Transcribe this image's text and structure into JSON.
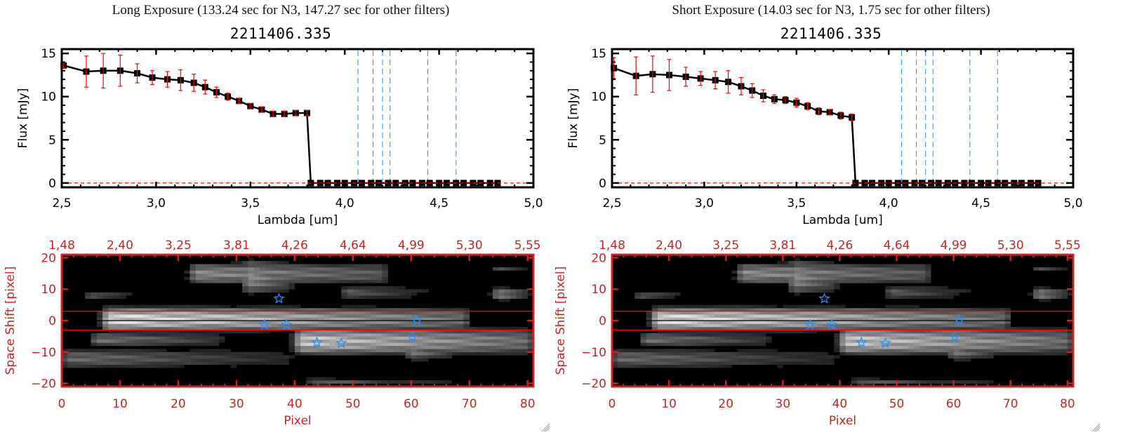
{
  "colors": {
    "spectrum_line": "#000000",
    "error_bar": "#ff0000",
    "filter_line": "#1e90ff",
    "zero_line": "#ff0000",
    "image_axis": "#cc2222",
    "aperture_line": "#ff0000",
    "star_marker": "#1e90ff"
  },
  "panels": [
    {
      "id": "long",
      "exposure_title": "Long Exposure (133.24 sec for N3, 147.27 sec for other filters)",
      "object_id": "2211406.335"
    },
    {
      "id": "short",
      "exposure_title": "Short Exposure (14.03 sec for N3, 1.75 sec for other filters)",
      "object_id": "2211406.335"
    }
  ],
  "chart_data": [
    {
      "type": "line",
      "panel": "long",
      "title": "2211406.335",
      "xlabel": "Lambda [um]",
      "ylabel": "Flux [mJy]",
      "xlim": [
        2.5,
        5.0
      ],
      "ylim": [
        -0.5,
        15.5
      ],
      "xticks": [
        "2.5",
        "3.0",
        "3.5",
        "4.0",
        "4.5",
        "5.0"
      ],
      "yticks": [
        "0",
        "5",
        "10",
        "15"
      ],
      "x": [
        2.51,
        2.63,
        2.72,
        2.81,
        2.9,
        2.98,
        3.06,
        3.13,
        3.2,
        3.26,
        3.32,
        3.38,
        3.44,
        3.5,
        3.56,
        3.62,
        3.68,
        3.74,
        3.8,
        3.82,
        3.87,
        3.91,
        3.96,
        4.0,
        4.05,
        4.09,
        4.14,
        4.18,
        4.23,
        4.27,
        4.32,
        4.36,
        4.41,
        4.45,
        4.5,
        4.54,
        4.59,
        4.63,
        4.68,
        4.72,
        4.77,
        4.81
      ],
      "y": [
        13.6,
        12.9,
        13.0,
        13.0,
        12.7,
        12.2,
        12.0,
        11.9,
        11.6,
        11.1,
        10.5,
        10.0,
        9.5,
        8.9,
        8.5,
        8.0,
        8.0,
        8.1,
        8.1,
        0,
        0,
        0,
        0,
        0,
        0,
        0,
        0,
        0,
        0,
        0,
        0,
        0,
        0,
        0,
        0,
        0,
        0,
        0,
        0,
        0,
        0,
        0
      ],
      "yerr": [
        0.3,
        1.8,
        2.0,
        1.8,
        1.1,
        0.8,
        0.9,
        1.2,
        1.0,
        0.8,
        0.6,
        0.4,
        0.3,
        0.3,
        0.3,
        0.3,
        0.3,
        0.3,
        0.3,
        0,
        0,
        0,
        0,
        0,
        0,
        0,
        0,
        0,
        0,
        0,
        0,
        0,
        0,
        0,
        0,
        0,
        0,
        0,
        0,
        0,
        0,
        0
      ],
      "filter_lines_x": [
        4.07,
        4.15,
        4.2,
        4.24,
        4.44,
        4.59
      ],
      "zero_reference_y": 0
    },
    {
      "type": "line",
      "panel": "short",
      "title": "2211406.335",
      "xlabel": "Lambda [um]",
      "ylabel": "Flux [mJy]",
      "xlim": [
        2.5,
        5.0
      ],
      "ylim": [
        -0.5,
        15.5
      ],
      "xticks": [
        "2.5",
        "3.0",
        "3.5",
        "4.0",
        "4.5",
        "5.0"
      ],
      "yticks": [
        "0",
        "5",
        "10",
        "15"
      ],
      "x": [
        2.51,
        2.63,
        2.72,
        2.81,
        2.9,
        2.98,
        3.06,
        3.13,
        3.2,
        3.26,
        3.32,
        3.38,
        3.44,
        3.5,
        3.56,
        3.62,
        3.68,
        3.74,
        3.8,
        3.82,
        3.87,
        3.91,
        3.96,
        4.0,
        4.05,
        4.09,
        4.14,
        4.18,
        4.23,
        4.27,
        4.32,
        4.36,
        4.41,
        4.45,
        4.5,
        4.54,
        4.59,
        4.63,
        4.68,
        4.72,
        4.77,
        4.81
      ],
      "y": [
        13.3,
        12.4,
        12.6,
        12.5,
        12.3,
        12.1,
        11.9,
        11.7,
        11.2,
        10.7,
        10.1,
        9.7,
        9.6,
        9.3,
        8.9,
        8.3,
        8.2,
        7.8,
        7.6,
        0,
        0,
        0,
        0,
        0,
        0,
        0,
        0,
        0,
        0,
        0,
        0,
        0,
        0,
        0,
        0,
        0,
        0,
        0,
        0,
        0,
        0,
        0
      ],
      "yerr": [
        1.2,
        2.2,
        2.1,
        1.8,
        1.1,
        0.8,
        1.0,
        1.3,
        1.0,
        0.8,
        0.7,
        0.5,
        0.4,
        0.5,
        0.4,
        0.4,
        0.3,
        0.4,
        0.4,
        0,
        0,
        0,
        0,
        0,
        0,
        0,
        0,
        0,
        0,
        0,
        0,
        0,
        0,
        0,
        0,
        0,
        0,
        0,
        0,
        0,
        0,
        0
      ],
      "filter_lines_x": [
        4.07,
        4.15,
        4.2,
        4.24,
        4.44,
        4.59
      ],
      "zero_reference_y": 0
    },
    {
      "type": "heatmap",
      "panel": "both",
      "xlabel": "Pixel",
      "ylabel": "Space Shift [pixel]",
      "xlim": [
        0,
        81
      ],
      "ylim": [
        -21,
        21
      ],
      "xticks_bottom": [
        "0",
        "10",
        "20",
        "30",
        "40",
        "50",
        "60",
        "70",
        "80"
      ],
      "xticks_top": [
        "1.48",
        "2.40",
        "3.25",
        "3.81",
        "4.26",
        "4.64",
        "4.99",
        "5.30",
        "5.55"
      ],
      "yticks": [
        "-20",
        "-10",
        "0",
        "10",
        "20"
      ],
      "aperture_y": [
        3,
        -3
      ],
      "center_y": 0,
      "blobs": [
        {
          "x0": 7,
          "x1": 70,
          "yc": 0.5,
          "h": 4.5,
          "peak": 0.95,
          "fade": 0.55
        },
        {
          "x0": 40,
          "x1": 81,
          "yc": -6.5,
          "h": 5,
          "peak": 0.85,
          "fade": 0.5
        },
        {
          "x0": 22,
          "x1": 56,
          "yc": 15,
          "h": 4,
          "peak": 0.6,
          "fade": 0.4
        },
        {
          "x0": 31,
          "x1": 40,
          "yc": 14,
          "h": 6.5,
          "peak": 0.65,
          "fade": 0.6
        },
        {
          "x0": 4,
          "x1": 13,
          "yc": 8,
          "h": 1.8,
          "peak": 0.4,
          "fade": 0.8
        },
        {
          "x0": 0,
          "x1": 40,
          "yc": -12,
          "h": 3.5,
          "peak": 0.45,
          "fade": 0.7
        },
        {
          "x0": 5,
          "x1": 28,
          "yc": -6,
          "h": 2.5,
          "peak": 0.5,
          "fade": 0.6
        },
        {
          "x0": 59,
          "x1": 68,
          "yc": -10,
          "h": 3,
          "peak": 0.55,
          "fade": 0.7
        },
        {
          "x0": 48,
          "x1": 64,
          "yc": 9,
          "h": 2.5,
          "peak": 0.4,
          "fade": 0.8
        },
        {
          "x0": 74,
          "x1": 81,
          "yc": 8.5,
          "h": 2.5,
          "peak": 0.6,
          "fade": 0.8
        },
        {
          "x0": 74,
          "x1": 81,
          "yc": 16.5,
          "h": 1.3,
          "peak": 0.35,
          "fade": 0.8
        },
        {
          "x0": 42,
          "x1": 69,
          "yc": -19.5,
          "h": 1.3,
          "peak": 0.4,
          "fade": 0.8
        }
      ],
      "stars": [
        {
          "x": 37.3,
          "y": 7.0
        },
        {
          "x": 34.8,
          "y": -1.3
        },
        {
          "x": 38.6,
          "y": -1.3
        },
        {
          "x": 43.8,
          "y": -7.0
        },
        {
          "x": 48.0,
          "y": -7.2
        },
        {
          "x": 61.0,
          "y": 0.0
        },
        {
          "x": 60.2,
          "y": -5.2
        }
      ]
    }
  ]
}
